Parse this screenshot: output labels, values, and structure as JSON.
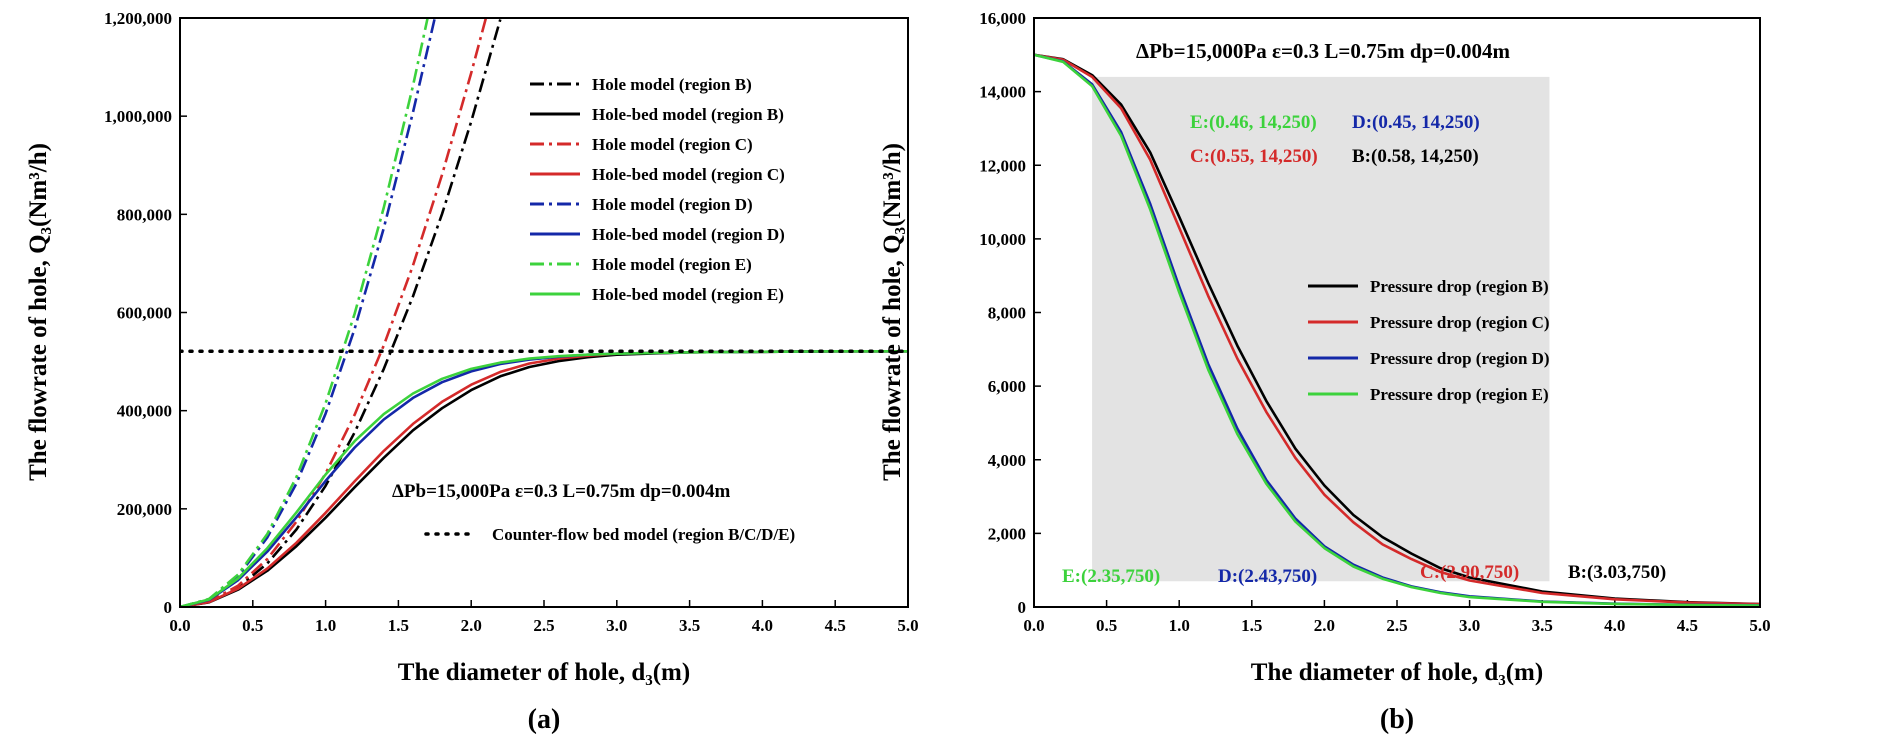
{
  "colors": {
    "B": "#000000",
    "C": "#d42a2a",
    "D": "#1428a8",
    "E": "#3cd23c",
    "shade": "#e3e3e3"
  },
  "chart_data": [
    {
      "type": "line",
      "panel_label": "(a)",
      "xlabel": "The diameter of hole, d₃(m)",
      "ylabel": "The flowrate of hole, Q₃(Nm³/h)",
      "xlim": [
        0,
        5
      ],
      "ylim": [
        0,
        1200000
      ],
      "xticks": [
        "0.0",
        "0.5",
        "1.0",
        "1.5",
        "2.0",
        "2.5",
        "3.0",
        "3.5",
        "4.0",
        "4.5",
        "5.0"
      ],
      "yticks": [
        "0",
        "200,000",
        "400,000",
        "600,000",
        "800,000",
        "1,000,000",
        "1,200,000"
      ],
      "annotation": "ΔPb=15,000Pa ε=0.3 L=0.75m dp=0.004m",
      "series": [
        {
          "name": "Hole model (region B)",
          "region": "B",
          "style": "dashdot",
          "x": [
            0,
            0.2,
            0.4,
            0.6,
            0.8,
            1.0,
            1.2,
            1.4,
            1.6,
            1.8,
            2.0,
            2.2
          ],
          "y": [
            0,
            9900,
            39600,
            89000,
            158000,
            247000,
            356000,
            485000,
            633000,
            801000,
            989000,
            1197000
          ]
        },
        {
          "name": "Hole-bed model (region B)",
          "region": "B",
          "style": "solid",
          "x": [
            0,
            0.2,
            0.4,
            0.6,
            0.8,
            1.0,
            1.2,
            1.4,
            1.6,
            1.8,
            2.0,
            2.2,
            2.4,
            2.6,
            2.8,
            3.0,
            3.5,
            4.0,
            4.5,
            5.0
          ],
          "y": [
            0,
            9500,
            35500,
            74000,
            124000,
            182000,
            244000,
            304000,
            360000,
            405000,
            442000,
            470000,
            489000,
            501000,
            509000,
            514000,
            519000,
            520000,
            521000,
            521000
          ]
        },
        {
          "name": "Hole model (region C)",
          "region": "C",
          "style": "dashdot",
          "x": [
            0,
            0.2,
            0.4,
            0.6,
            0.8,
            1.0,
            1.2,
            1.4,
            1.6,
            1.8,
            2.0,
            2.1
          ],
          "y": [
            0,
            10900,
            43500,
            98000,
            174000,
            272000,
            392000,
            533000,
            696000,
            881000,
            1088000,
            1199000
          ]
        },
        {
          "name": "Hole-bed model (region C)",
          "region": "C",
          "style": "solid",
          "x": [
            0,
            0.2,
            0.4,
            0.6,
            0.8,
            1.0,
            1.2,
            1.4,
            1.6,
            1.8,
            2.0,
            2.2,
            2.4,
            2.6,
            2.8,
            3.0,
            3.5,
            4.0,
            4.5,
            5.0
          ],
          "y": [
            0,
            10000,
            37500,
            78500,
            131000,
            192000,
            256000,
            318000,
            373000,
            418000,
            453000,
            479000,
            496000,
            506000,
            512000,
            516000,
            519000,
            520000,
            521000,
            521000
          ]
        },
        {
          "name": "Hole model (region D)",
          "region": "D",
          "style": "dashdot",
          "x": [
            0,
            0.2,
            0.4,
            0.6,
            0.8,
            1.0,
            1.2,
            1.4,
            1.6,
            1.75
          ],
          "y": [
            0,
            15800,
            63000,
            142000,
            252000,
            394000,
            567000,
            772000,
            1008000,
            1200000
          ]
        },
        {
          "name": "Hole-bed model (region D)",
          "region": "D",
          "style": "solid",
          "x": [
            0,
            0.2,
            0.4,
            0.6,
            0.8,
            1.0,
            1.2,
            1.4,
            1.6,
            1.8,
            2.0,
            2.2,
            2.4,
            2.6,
            2.8,
            3.0,
            3.5,
            4.0,
            4.5,
            5.0
          ],
          "y": [
            0,
            14500,
            55000,
            113000,
            183000,
            257000,
            325000,
            382000,
            426000,
            458000,
            480000,
            495000,
            504000,
            510000,
            514000,
            516000,
            519000,
            520000,
            521000,
            521000
          ]
        },
        {
          "name": "Hole model (region E)",
          "region": "E",
          "style": "dashdot",
          "x": [
            0,
            0.2,
            0.4,
            0.6,
            0.8,
            1.0,
            1.2,
            1.4,
            1.6,
            1.7
          ],
          "y": [
            0,
            16600,
            66400,
            149000,
            265000,
            415000,
            598000,
            814000,
            1062000,
            1199000
          ]
        },
        {
          "name": "Hole-bed model (region E)",
          "region": "E",
          "style": "solid",
          "x": [
            0,
            0.2,
            0.4,
            0.6,
            0.8,
            1.0,
            1.2,
            1.4,
            1.6,
            1.8,
            2.0,
            2.2,
            2.4,
            2.6,
            2.8,
            3.0,
            3.5,
            4.0,
            4.5,
            5.0
          ],
          "y": [
            0,
            15500,
            58500,
            120000,
            193000,
            270000,
            338000,
            393000,
            435000,
            465000,
            485000,
            498000,
            506000,
            511000,
            514000,
            516000,
            519000,
            520000,
            521000,
            521000
          ]
        },
        {
          "name": "Counter-flow bed model (region B/C/D/E)",
          "region": "B",
          "style": "dotted",
          "x": [
            0,
            5
          ],
          "y": [
            521000,
            521000
          ]
        }
      ]
    },
    {
      "type": "line",
      "panel_label": "(b)",
      "xlabel": "The diameter of hole, d₃(m)",
      "ylabel": "The flowrate of hole, Q₃(Nm³/h)",
      "xlim": [
        0,
        5
      ],
      "ylim": [
        0,
        16000
      ],
      "xticks": [
        "0.0",
        "0.5",
        "1.0",
        "1.5",
        "2.0",
        "2.5",
        "3.0",
        "3.5",
        "4.0",
        "4.5",
        "5.0"
      ],
      "yticks": [
        "0",
        "2,000",
        "4,000",
        "6,000",
        "8,000",
        "10,000",
        "12,000",
        "14,000",
        "16,000"
      ],
      "annotation": "ΔPb=15,000Pa ε=0.3 L=0.75m dp=0.004m",
      "shaded_region": {
        "x": [
          0.4,
          3.55
        ],
        "y": [
          700,
          14400
        ]
      },
      "series": [
        {
          "name": "Pressure drop (region B)",
          "region": "B",
          "style": "solid",
          "x": [
            0,
            0.2,
            0.4,
            0.6,
            0.8,
            1.0,
            1.2,
            1.4,
            1.6,
            1.8,
            2.0,
            2.2,
            2.4,
            2.6,
            2.8,
            3.0,
            3.5,
            4.0,
            4.5,
            5.0
          ],
          "y": [
            15000,
            14880,
            14450,
            13650,
            12350,
            10600,
            8800,
            7100,
            5600,
            4300,
            3300,
            2500,
            1900,
            1450,
            1050,
            800,
            420,
            230,
            130,
            80
          ]
        },
        {
          "name": "Pressure drop (region C)",
          "region": "C",
          "style": "solid",
          "x": [
            0,
            0.2,
            0.4,
            0.6,
            0.8,
            1.0,
            1.2,
            1.4,
            1.6,
            1.8,
            2.0,
            2.2,
            2.4,
            2.6,
            2.8,
            3.0,
            3.5,
            4.0,
            4.5,
            5.0
          ],
          "y": [
            15000,
            14870,
            14400,
            13550,
            12150,
            10300,
            8450,
            6750,
            5300,
            4050,
            3050,
            2300,
            1700,
            1300,
            950,
            720,
            380,
            210,
            120,
            75
          ]
        },
        {
          "name": "Pressure drop (region D)",
          "region": "D",
          "style": "solid",
          "x": [
            0,
            0.2,
            0.4,
            0.6,
            0.8,
            1.0,
            1.2,
            1.4,
            1.6,
            1.8,
            2.0,
            2.2,
            2.4,
            2.6,
            2.8,
            3.0,
            3.5,
            4.0,
            4.5,
            5.0
          ],
          "y": [
            15000,
            14820,
            14200,
            12900,
            10950,
            8700,
            6600,
            4850,
            3450,
            2400,
            1650,
            1150,
            800,
            560,
            400,
            290,
            150,
            90,
            60,
            45
          ]
        },
        {
          "name": "Pressure drop (region E)",
          "region": "E",
          "style": "solid",
          "x": [
            0,
            0.2,
            0.4,
            0.6,
            0.8,
            1.0,
            1.2,
            1.4,
            1.6,
            1.8,
            2.0,
            2.2,
            2.4,
            2.6,
            2.8,
            3.0,
            3.5,
            4.0,
            4.5,
            5.0
          ],
          "y": [
            15000,
            14810,
            14150,
            12800,
            10800,
            8550,
            6450,
            4700,
            3350,
            2320,
            1600,
            1100,
            770,
            540,
            380,
            270,
            140,
            85,
            55,
            40
          ]
        }
      ],
      "point_notes": [
        {
          "region": "E",
          "text": "E:(0.46, 14,250)"
        },
        {
          "region": "D",
          "text": "D:(0.45, 14,250)"
        },
        {
          "region": "C",
          "text": "C:(0.55, 14,250)"
        },
        {
          "region": "B",
          "text": "B:(0.58, 14,250)"
        },
        {
          "region": "E",
          "text": "E:(2.35,750)"
        },
        {
          "region": "D",
          "text": "D:(2.43,750)"
        },
        {
          "region": "C",
          "text": "C:(2.90,750)"
        },
        {
          "region": "B",
          "text": "B:(3.03,750)"
        }
      ]
    }
  ]
}
